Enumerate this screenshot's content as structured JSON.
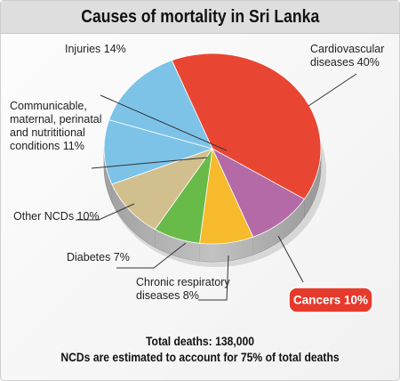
{
  "title": "Causes of mortality in Sri Lanka",
  "footer": {
    "total": "Total deaths: 138,000",
    "note": "NCDs are estimated to account for 75% of total deaths"
  },
  "chart_data": {
    "type": "pie",
    "title": "Causes of mortality in Sri Lanka",
    "slices": [
      {
        "name": "Cardiovascular diseases",
        "value": 40,
        "label": [
          "Cardiovascular",
          "diseases 40%"
        ],
        "color": "#e84632",
        "side": "#a82a1c"
      },
      {
        "name": "Cancers",
        "value": 10,
        "label": [
          "Cancers 10%"
        ],
        "color": "#b46aa6",
        "side": "#7a3f70",
        "highlight": true
      },
      {
        "name": "Chronic respiratory diseases",
        "value": 8,
        "label": [
          "Chronic respiratory",
          "diseases 8%"
        ],
        "color": "#f7ba2d",
        "side": "#b88516"
      },
      {
        "name": "Diabetes",
        "value": 7,
        "label": [
          "Diabetes 7%"
        ],
        "color": "#68bb48",
        "side": "#40812a"
      },
      {
        "name": "Other NCDs",
        "value": 10,
        "label": [
          "Other NCDs 10%"
        ],
        "color": "#d1bf8d",
        "side": "#94855d"
      },
      {
        "name": "Communicable, maternal, perinatal and nutritional conditions",
        "value": 11,
        "label": [
          "Communicable,",
          "maternal, perinatal",
          "and nutrititional",
          "conditions 11%"
        ],
        "color": "#7dc3e8",
        "side": "#4c8bb0"
      },
      {
        "name": "Injuries",
        "value": 14,
        "label": [
          "Injuries 14%"
        ],
        "color": "#7dc3e8",
        "side": "#4c8bb0"
      }
    ],
    "highlight_color": "#e63a2c"
  }
}
